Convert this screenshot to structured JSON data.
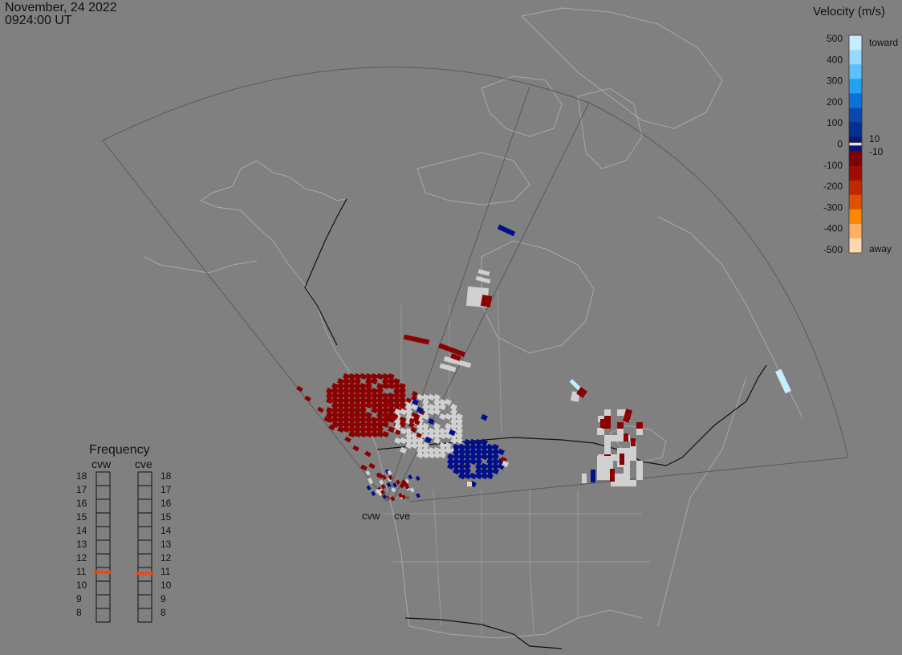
{
  "header": {
    "date": "November, 24 2022",
    "time": "0924:00 UT"
  },
  "velocity_scale": {
    "title": "Velocity (m/s)",
    "ticks": [
      "500",
      "400",
      "300",
      "200",
      "100",
      "0",
      "-100",
      "-200",
      "-300",
      "-400",
      "-500"
    ],
    "label_toward": "toward",
    "label_away": "away",
    "label_pos": "10",
    "label_neg": "-10",
    "colors": [
      "#c6ecff",
      "#9ad8ff",
      "#5fc0ff",
      "#26a0f0",
      "#0a72d8",
      "#0a48b0",
      "#003090",
      "#0a1870",
      "#800000",
      "#a00c00",
      "#c02800",
      "#e05000",
      "#ff8800",
      "#ffb060",
      "#ffd8b0"
    ]
  },
  "frequency_panel": {
    "title": "Frequency",
    "radars": [
      "cvw",
      "cve"
    ],
    "levels": [
      "18",
      "17",
      "16",
      "15",
      "14",
      "13",
      "12",
      "11",
      "10",
      "9",
      "8"
    ],
    "selected": {
      "cvw": 10.9,
      "cve": 10.8
    },
    "marker_color": "#e84a1e"
  },
  "map": {
    "background": "#808080",
    "land_line_color": "#a8a8a8",
    "border_color": "#111111",
    "fov_color": "#5a5a5a",
    "radar_labels": [
      "cvw",
      "cve"
    ],
    "colors": {
      "dark_red": "#8b0000",
      "light_gray": "#d0d0d0",
      "dark_blue": "#00108a",
      "light_blue": "#c6ecff",
      "peach": "#ffd0a8"
    }
  }
}
